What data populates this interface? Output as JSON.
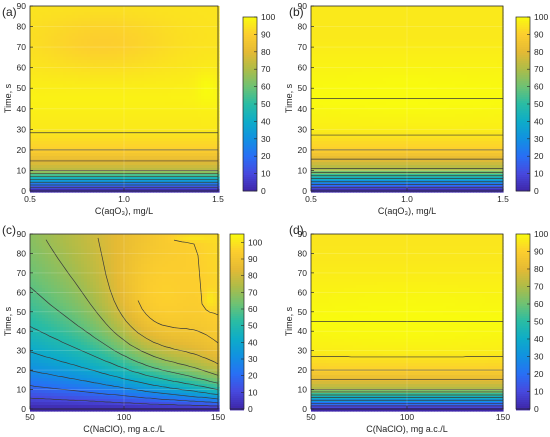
{
  "figure": {
    "description_colors": {
      "low": "#3e26a8",
      "high": "#f9fb0e"
    }
  },
  "chart_data": [
    {
      "panel_label": "(a)",
      "type": "heatmap",
      "xlabel": "C(aqO₃), mg/L",
      "ylabel": "Time, s",
      "xlim": [
        0.5,
        1.5
      ],
      "ylim": [
        0,
        90
      ],
      "xticks": [
        0.5,
        1.0,
        1.5
      ],
      "xtick_labels": [
        "0.5",
        "1.0",
        "1.5"
      ],
      "yticks": [
        0,
        10,
        20,
        30,
        40,
        50,
        60,
        70,
        80,
        90
      ],
      "colorbar_range": [
        0,
        100
      ],
      "colorbar_ticks": [
        0,
        10,
        20,
        30,
        40,
        50,
        60,
        70,
        80,
        90,
        100
      ],
      "grid": true,
      "contour_levels": [
        10,
        20,
        30,
        40,
        50,
        60,
        70,
        80,
        90,
        95,
        100
      ],
      "features": [
        {
          "region": "lens",
          "x_range": [
            0.5,
            1.28
          ],
          "y_range": [
            58,
            87
          ],
          "value": 90
        },
        {
          "region": "lobe",
          "x_range": [
            1.38,
            1.5
          ],
          "y_range": [
            41,
            58
          ],
          "value": 100
        }
      ],
      "time_profile": [
        {
          "time": 0,
          "value": 0
        },
        {
          "time": 10,
          "value": 72
        },
        {
          "time": 20,
          "value": 90
        },
        {
          "time": 30,
          "value": 96
        },
        {
          "time": 45,
          "value": 98
        },
        {
          "time": 60,
          "value": 96
        },
        {
          "time": 75,
          "value": 95
        },
        {
          "time": 90,
          "value": 95
        }
      ]
    },
    {
      "panel_label": "(b)",
      "type": "heatmap",
      "xlabel": "C(aqO₃), mg/L",
      "ylabel": "Time, s",
      "xlim": [
        0.5,
        1.5
      ],
      "ylim": [
        0,
        90
      ],
      "xticks": [
        0.5,
        1.0,
        1.5
      ],
      "xtick_labels": [
        "0.5",
        "1.0",
        "1.5"
      ],
      "yticks": [
        0,
        10,
        20,
        30,
        40,
        50,
        60,
        70,
        80,
        90
      ],
      "colorbar_range": [
        0,
        100
      ],
      "colorbar_ticks": [
        0,
        10,
        20,
        30,
        40,
        50,
        60,
        70,
        80,
        90,
        100
      ],
      "grid": true,
      "contour_levels": [
        10,
        20,
        30,
        40,
        50,
        60,
        70,
        80,
        90,
        95,
        100
      ],
      "features": [
        {
          "region": "plateau",
          "x_range": [
            0.5,
            1.5
          ],
          "y_range": [
            36,
            58
          ],
          "value": 100
        }
      ],
      "time_profile": [
        {
          "time": 0,
          "value": 0
        },
        {
          "time": 10,
          "value": 68
        },
        {
          "time": 20,
          "value": 90
        },
        {
          "time": 30,
          "value": 97
        },
        {
          "time": 45,
          "value": 100
        },
        {
          "time": 60,
          "value": 98
        },
        {
          "time": 75,
          "value": 96
        },
        {
          "time": 90,
          "value": 96
        }
      ]
    },
    {
      "panel_label": "(c)",
      "type": "heatmap",
      "xlabel": "C(NaClO), mg a.c./L",
      "ylabel": "Time, s",
      "xlim": [
        50,
        150
      ],
      "ylim": [
        0,
        90
      ],
      "xticks": [
        50,
        100,
        150
      ],
      "xtick_labels": [
        "50",
        "100",
        "150"
      ],
      "yticks": [
        0,
        10,
        20,
        30,
        40,
        50,
        60,
        70,
        80,
        90
      ],
      "colorbar_range": [
        0,
        105
      ],
      "colorbar_ticks": [
        0,
        10,
        20,
        30,
        40,
        50,
        60,
        70,
        80,
        90,
        100
      ],
      "grid": true,
      "contour_levels": [
        10,
        20,
        30,
        40,
        50,
        60,
        70,
        80,
        90,
        95,
        100
      ],
      "features": [
        {
          "region": "ridge",
          "x_range": [
            95,
            150
          ],
          "y_range": [
            30,
            90
          ],
          "value": 95
        },
        {
          "region": "lobe",
          "x_range": [
            142,
            150
          ],
          "y_range": [
            51,
            62
          ],
          "value": 100
        },
        {
          "region": "corner",
          "x_range": [
            125,
            150
          ],
          "y_range": [
            86,
            90
          ],
          "value": 100
        }
      ],
      "time_profile": [
        {
          "time": 0,
          "value": 0
        },
        {
          "time": 15,
          "value": 45
        },
        {
          "time": 30,
          "value": 68
        },
        {
          "time": 45,
          "value": 80
        },
        {
          "time": 60,
          "value": 88
        },
        {
          "time": 75,
          "value": 92
        },
        {
          "time": 90,
          "value": 93
        }
      ]
    },
    {
      "panel_label": "(d)",
      "type": "heatmap",
      "xlabel": "C(NaClO), mg a.c./L",
      "ylabel": "Time, s",
      "xlim": [
        50,
        150
      ],
      "ylim": [
        0,
        90
      ],
      "xticks": [
        50,
        100,
        150
      ],
      "xtick_labels": [
        "50",
        "100",
        "150"
      ],
      "yticks": [
        0,
        10,
        20,
        30,
        40,
        50,
        60,
        70,
        80,
        90
      ],
      "colorbar_range": [
        0,
        100
      ],
      "colorbar_ticks": [
        0,
        10,
        20,
        30,
        40,
        50,
        60,
        70,
        80,
        90,
        100
      ],
      "grid": true,
      "contour_levels": [
        10,
        20,
        30,
        40,
        50,
        60,
        70,
        80,
        90,
        95,
        100
      ],
      "features": [
        {
          "region": "plateau",
          "x_range": [
            50,
            150
          ],
          "y_range": [
            33,
            60
          ],
          "value": 100
        }
      ],
      "time_profile": [
        {
          "time": 0,
          "value": 0
        },
        {
          "time": 10,
          "value": 70
        },
        {
          "time": 20,
          "value": 90
        },
        {
          "time": 30,
          "value": 97
        },
        {
          "time": 45,
          "value": 100
        },
        {
          "time": 60,
          "value": 98
        },
        {
          "time": 75,
          "value": 96
        },
        {
          "time": 90,
          "value": 95
        }
      ]
    }
  ]
}
